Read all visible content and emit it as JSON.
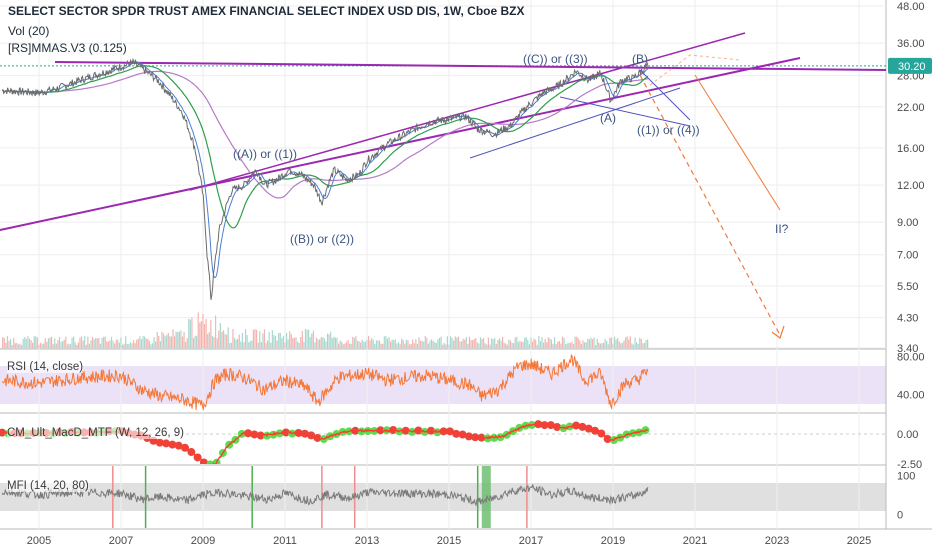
{
  "header": {
    "title": "SELECT SECTOR SPDR TRUST AMEX FINANCIAL SELECT INDEX USD DIS, 1W, Cboe BZX",
    "indicator_volume": "Vol (20)",
    "indicator_mmas": "[RS]MMAS.V3 (0.125)"
  },
  "panes": {
    "rsi_label": "RSI (14, close)",
    "macd_label": "CM_Ult_MacD_MTF (W, 12, 26, 9)",
    "mfi_label": "MFI (14, 20, 80)"
  },
  "colors": {
    "price": "#6b6b6b",
    "sma_fast": "#4a7fd6",
    "sma_mid": "#2e9e4a",
    "sma_slow": "#b57ac9",
    "trend": "#9c27b0",
    "channel": "#5050c0",
    "projection": "#f07a3c",
    "rsi": "#f47738",
    "rsi_band": "#e9ddf5",
    "mfi_band": "#dedede",
    "price_tag": "#26a69a"
  },
  "chart_data": [
    {
      "type": "line",
      "title": "SELECT SECTOR SPDR TRUST AMEX FINANCIAL SELECT INDEX USD DIS, 1W, Cboe BZX",
      "y_scale": "log",
      "x_ticks": [
        "2005",
        "2007",
        "2009",
        "2011",
        "2013",
        "2015",
        "2017",
        "2019",
        "2021",
        "2023",
        "2025"
      ],
      "x_range": [
        2004.1,
        2026.0
      ],
      "y_ticks": [
        3.4,
        4.3,
        5.5,
        7.0,
        9.0,
        12.0,
        16.0,
        22.0,
        28.0,
        36.0,
        48.0
      ],
      "y_tick_labels": [
        "3.40",
        "4.30",
        "5.50",
        "7.00",
        "9.00",
        "12.00",
        "16.00",
        "22.00",
        "28.00",
        "36.00",
        "48.00"
      ],
      "last_price": 30.2,
      "last_price_label": "30.20",
      "series": [
        {
          "x": [
            2004.1,
            2005.0,
            2005.5,
            2006.0,
            2006.5,
            2007.0,
            2007.3,
            2007.6,
            2007.9,
            2008.2,
            2008.5,
            2008.8,
            2009.0,
            2009.1,
            2009.2,
            2009.4,
            2009.7,
            2010.0,
            2010.3,
            2010.5,
            2010.8,
            2011.1,
            2011.4,
            2011.7,
            2011.9,
            2012.2,
            2012.5,
            2012.8,
            2013.0,
            2013.5,
            2014.0,
            2014.5,
            2015.0,
            2015.4,
            2015.7,
            2016.1,
            2016.5,
            2016.9,
            2017.3,
            2017.7,
            2018.1,
            2018.4,
            2018.7,
            2018.95,
            2019.2,
            2019.5,
            2019.85
          ],
          "values": [
            25.0,
            24.5,
            25.5,
            27.0,
            28.5,
            30.0,
            31.0,
            29.0,
            27.0,
            24.0,
            21.0,
            16.0,
            11.0,
            7.0,
            4.9,
            8.5,
            11.5,
            12.0,
            13.5,
            12.0,
            12.5,
            13.5,
            13.0,
            12.0,
            10.5,
            13.5,
            12.5,
            13.0,
            14.5,
            16.5,
            18.0,
            19.5,
            20.0,
            20.5,
            18.5,
            17.8,
            19.0,
            22.0,
            24.5,
            26.0,
            29.0,
            27.0,
            28.5,
            23.0,
            27.0,
            27.5,
            30.2
          ]
        }
      ],
      "annotations": [
        "((A)) or ((1))",
        "((B)) or ((2))",
        "((C)) or ((3))",
        "(B)",
        "(A)",
        "((1)) or ((4))",
        "II?"
      ]
    },
    {
      "type": "line",
      "title": "RSI (14, close)",
      "y_ticks": [
        40.0,
        80.0
      ],
      "y_tick_labels": [
        "40.00",
        "80.00"
      ],
      "band": [
        30,
        70
      ],
      "x": [
        2004.1,
        2005.0,
        2006.0,
        2007.0,
        2007.5,
        2008.0,
        2008.5,
        2009.0,
        2009.3,
        2009.6,
        2010.0,
        2010.5,
        2011.0,
        2011.5,
        2011.8,
        2012.3,
        2013.0,
        2013.5,
        2014.0,
        2014.5,
        2015.0,
        2015.5,
        2015.8,
        2016.2,
        2016.7,
        2017.0,
        2017.5,
        2018.0,
        2018.3,
        2018.7,
        2018.95,
        2019.3,
        2019.6,
        2019.85
      ],
      "values": [
        55,
        52,
        58,
        60,
        45,
        38,
        35,
        28,
        55,
        62,
        58,
        45,
        55,
        48,
        32,
        58,
        62,
        55,
        58,
        60,
        55,
        50,
        38,
        45,
        70,
        72,
        62,
        78,
        55,
        62,
        30,
        52,
        55,
        66
      ]
    },
    {
      "type": "line",
      "title": "CM_Ult_MacD_MTF (W, 12, 26, 9)",
      "y_ticks": [
        0.0,
        -2.5
      ],
      "y_tick_labels": [
        "0.00",
        "-2.50"
      ],
      "x": [
        2004.1,
        2005.0,
        2006.0,
        2007.0,
        2007.5,
        2008.0,
        2008.5,
        2008.9,
        2009.1,
        2009.3,
        2009.6,
        2010.0,
        2010.5,
        2011.0,
        2011.5,
        2011.9,
        2012.5,
        2013.0,
        2014.0,
        2015.0,
        2015.8,
        2016.3,
        2016.8,
        2017.2,
        2017.8,
        2018.2,
        2018.6,
        2018.95,
        2019.3,
        2019.85
      ],
      "values": [
        0.1,
        0.05,
        0.15,
        0.2,
        -0.2,
        -0.7,
        -1.0,
        -2.0,
        -2.6,
        -2.5,
        -1.0,
        0.1,
        -0.1,
        0.15,
        -0.05,
        -0.4,
        0.2,
        0.3,
        0.25,
        0.2,
        -0.35,
        -0.2,
        0.6,
        0.9,
        0.5,
        0.7,
        0.3,
        -0.55,
        -0.1,
        0.35
      ]
    },
    {
      "type": "line",
      "title": "MFI (14, 20, 80)",
      "y_ticks": [
        0,
        100
      ],
      "y_tick_labels": [
        "0",
        "100"
      ],
      "band": [
        20,
        80
      ],
      "x": [
        2004.1,
        2005.0,
        2006.0,
        2007.0,
        2007.5,
        2008.0,
        2008.6,
        2009.0,
        2009.5,
        2010.0,
        2010.6,
        2011.0,
        2011.6,
        2012.0,
        2012.6,
        2013.0,
        2014.0,
        2015.0,
        2015.7,
        2016.0,
        2016.5,
        2017.0,
        2017.5,
        2018.0,
        2018.5,
        2019.0,
        2019.5,
        2019.85
      ],
      "values": [
        62,
        55,
        60,
        58,
        45,
        50,
        42,
        55,
        60,
        52,
        45,
        58,
        42,
        55,
        48,
        60,
        58,
        55,
        40,
        45,
        62,
        70,
        55,
        62,
        48,
        45,
        52,
        65
      ]
    }
  ]
}
